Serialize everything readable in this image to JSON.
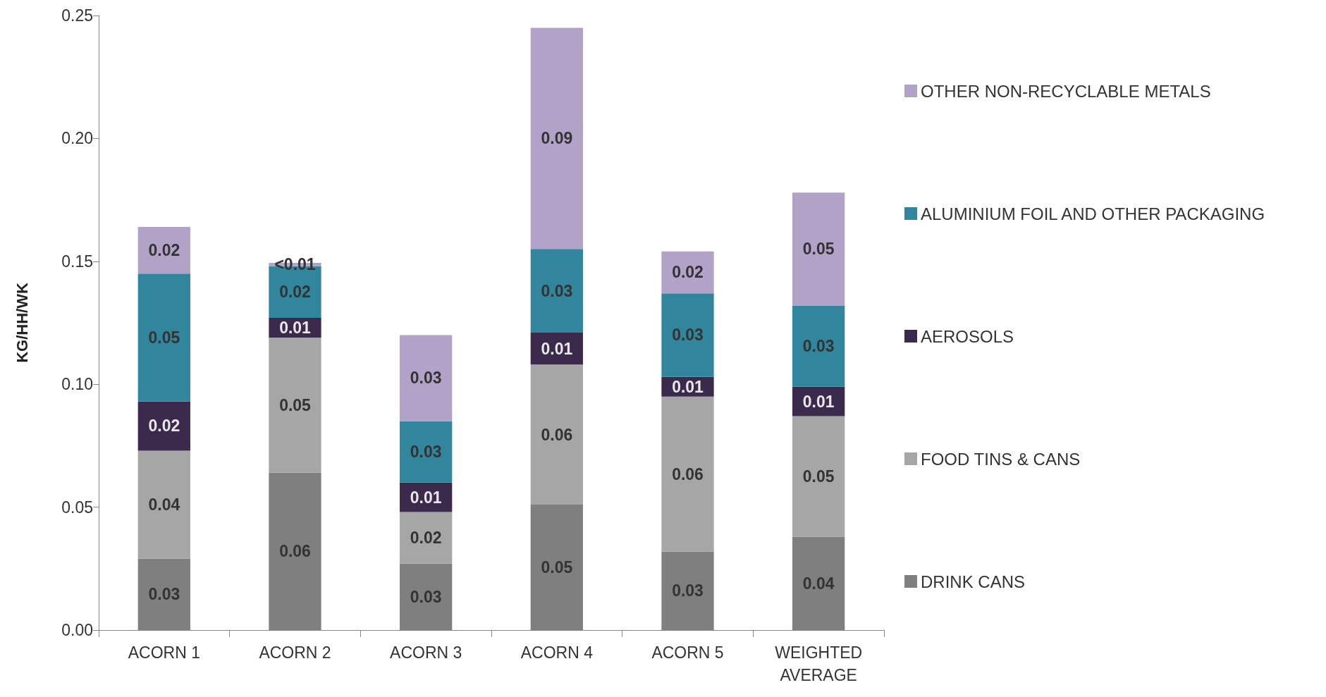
{
  "chart_data": {
    "type": "bar",
    "stacked": true,
    "ylabel": "KG/HH/WK",
    "categories": [
      "ACORN 1",
      "ACORN 2",
      "ACORN 3",
      "ACORN 4",
      "ACORN 5",
      "WEIGHTED\nAVERAGE"
    ],
    "series": [
      {
        "name": "DRINK CANS",
        "color": "#7f7f7f",
        "values": [
          0.029,
          0.064,
          0.027,
          0.051,
          0.032,
          0.038
        ],
        "value_labels": [
          "0.03",
          "0.06",
          "0.03",
          "0.05",
          "0.03",
          "0.04"
        ]
      },
      {
        "name": "FOOD TINS & CANS",
        "color": "#a6a6a6",
        "values": [
          0.044,
          0.055,
          0.021,
          0.057,
          0.063,
          0.049
        ],
        "value_labels": [
          "0.04",
          "0.05",
          "0.02",
          "0.06",
          "0.06",
          "0.05"
        ]
      },
      {
        "name": "AEROSOLS",
        "color": "#3b2a4b",
        "values": [
          0.02,
          0.008,
          0.012,
          0.013,
          0.008,
          0.012
        ],
        "value_labels": [
          "0.02",
          "0.01",
          "0.01",
          "0.01",
          "0.01",
          "0.01"
        ]
      },
      {
        "name": "ALUMINIUM FOIL AND OTHER PACKAGING",
        "color": "#31859c",
        "values": [
          0.052,
          0.021,
          0.025,
          0.034,
          0.034,
          0.033
        ],
        "value_labels": [
          "0.05",
          "0.02",
          "0.03",
          "0.03",
          "0.03",
          "0.03"
        ]
      },
      {
        "name": "OTHER NON-RECYCLABLE METALS",
        "color": "#b3a2c7",
        "values": [
          0.019,
          0.0014,
          0.035,
          0.09,
          0.017,
          0.046
        ],
        "value_labels": [
          "0.02",
          "<0.01",
          "0.03",
          "0.09",
          "0.02",
          "0.05"
        ]
      }
    ],
    "ylim": [
      0,
      0.25
    ],
    "yticks": [
      {
        "value": 0,
        "label": "0.00"
      },
      0.05,
      {
        "value": 0.1,
        "label": "0.10"
      },
      0.15,
      {
        "value": 0.2,
        "label": "0.20"
      },
      0.25
    ],
    "grid": false,
    "legend": "right"
  }
}
